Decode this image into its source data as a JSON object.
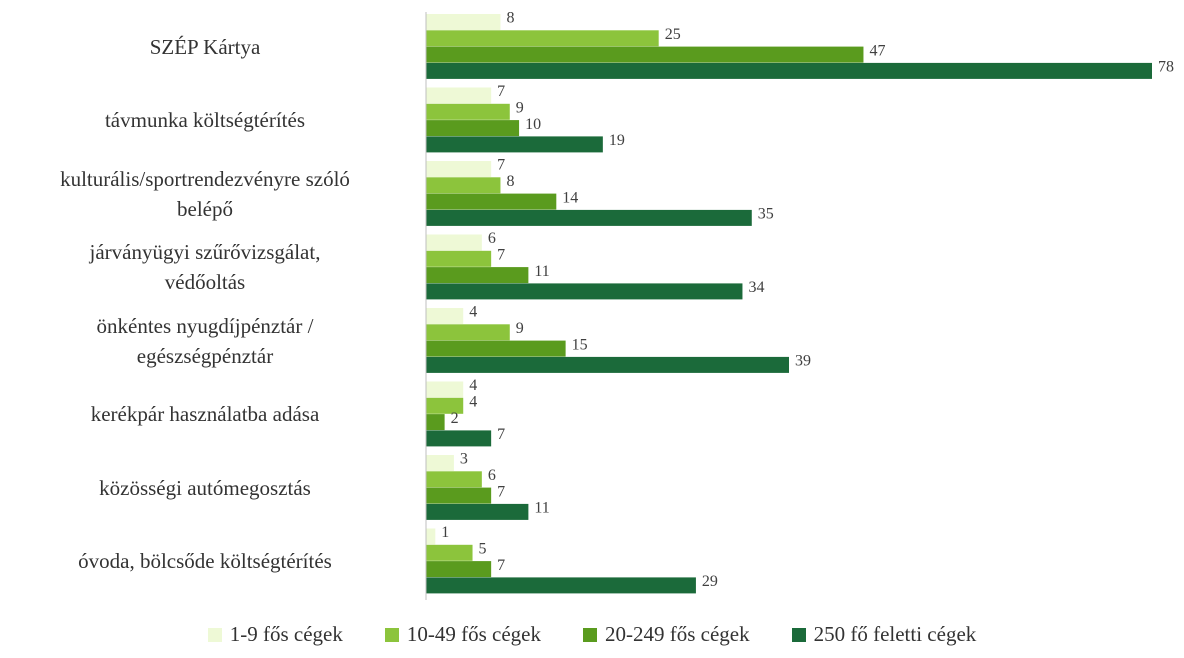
{
  "chart_data": {
    "type": "bar",
    "orientation": "horizontal",
    "categories": [
      "SZÉP Kártya",
      "távmunka költségtérítés",
      "kulturális/sportrendezvényre szóló\nbelépő",
      "járványügyi szűrővizsgálat,\nvédőoltás",
      "önkéntes nyugdíjpénztár /\negészségpénztár",
      "kerékpár használatba adása",
      "közösségi autómegosztás",
      "óvoda, bölcsőde költségtérítés"
    ],
    "series": [
      {
        "name": "1-9 fős cégek",
        "color": "#eef9d6",
        "values": [
          8,
          7,
          7,
          6,
          4,
          4,
          3,
          1
        ]
      },
      {
        "name": "10-49 fős cégek",
        "color": "#8cc43c",
        "values": [
          25,
          9,
          8,
          7,
          9,
          4,
          6,
          5
        ]
      },
      {
        "name": "20-249 fős cégek",
        "color": "#5a9b1e",
        "values": [
          47,
          10,
          14,
          11,
          15,
          2,
          7,
          7
        ]
      },
      {
        "name": "250 fő feletti cégek",
        "color": "#1b6a3a",
        "values": [
          78,
          19,
          35,
          34,
          39,
          7,
          11,
          29
        ]
      }
    ],
    "legend": "bottom"
  }
}
